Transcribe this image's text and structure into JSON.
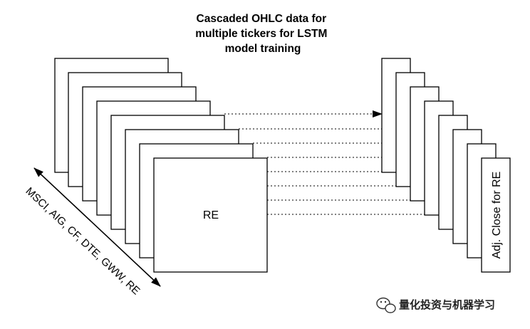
{
  "diagram": {
    "title_lines": [
      "Cascaded OHLC data for",
      "multiple tickers for LSTM",
      "model training"
    ],
    "front_card_label": "RE",
    "ticker_list_label": "MSCI, AIG, CF, DTE, GWW, RE",
    "output_label": "Adj. Close for RE",
    "watermark": "量化投资与机器学习",
    "line_color": "#000000",
    "background_color": "#ffffff"
  }
}
